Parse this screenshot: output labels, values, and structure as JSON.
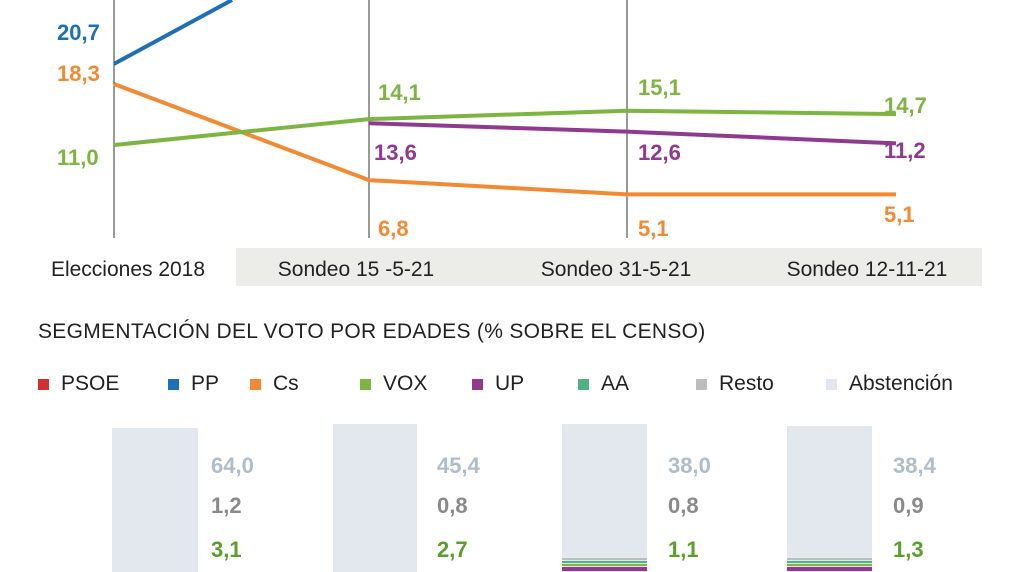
{
  "chart_data": [
    {
      "type": "line",
      "categories": [
        "Elecciones 2018",
        "Sondeo 15 -5-21",
        "Sondeo 31-5-21",
        "Sondeo 12-11-21"
      ],
      "series": [
        {
          "name": "PP",
          "color": "#1f6fb5",
          "values": [
            20.7,
            null,
            null,
            null
          ],
          "labels": [
            "20,7",
            "",
            "",
            ""
          ]
        },
        {
          "name": "Cs",
          "color": "#f28a34",
          "values": [
            18.3,
            6.8,
            5.1,
            5.1
          ],
          "labels": [
            "18,3",
            "6,8",
            "5,1",
            "5,1"
          ]
        },
        {
          "name": "VOX",
          "color": "#7db442",
          "values": [
            11.0,
            14.1,
            15.1,
            14.7
          ],
          "labels": [
            "11,0",
            "14,1",
            "15,1",
            "14,7"
          ]
        },
        {
          "name": "UP",
          "color": "#8f3a8f",
          "values": [
            null,
            13.6,
            12.6,
            11.2
          ],
          "labels": [
            "",
            "13,6",
            "12,6",
            "11,2"
          ]
        }
      ],
      "ylim": [
        2,
        22
      ],
      "grid": "vertical"
    },
    {
      "type": "bar",
      "title": "SEGMENTACIÓN DEL VOTO POR EDADES (% SOBRE EL CENSO)",
      "legend": [
        {
          "name": "PSOE",
          "color": "#d62f2f"
        },
        {
          "name": "PP",
          "color": "#1f6fb5"
        },
        {
          "name": "Cs",
          "color": "#f28a34"
        },
        {
          "name": "VOX",
          "color": "#7db442"
        },
        {
          "name": "UP",
          "color": "#8f3a8f"
        },
        {
          "name": "AA",
          "color": "#4db37f"
        },
        {
          "name": "Resto",
          "color": "#bdbdbd"
        },
        {
          "name": "Abstención",
          "color": "#e3e8ee"
        }
      ],
      "groups": [
        {
          "values": [
            {
              "name": "Abstención",
              "value": 64.0,
              "label": "64,0",
              "color": "#aebdcc"
            },
            {
              "name": "Resto",
              "value": 1.2,
              "label": "1,2",
              "color": "#8a8a8a"
            },
            {
              "name": "VOX",
              "value": 3.1,
              "label": "3,1",
              "color": "#5a9f2d"
            }
          ]
        },
        {
          "values": [
            {
              "name": "Abstención",
              "value": 45.4,
              "label": "45,4",
              "color": "#aebdcc"
            },
            {
              "name": "Resto",
              "value": 0.8,
              "label": "0,8",
              "color": "#8a8a8a"
            },
            {
              "name": "VOX",
              "value": 2.7,
              "label": "2,7",
              "color": "#5a9f2d"
            }
          ]
        },
        {
          "values": [
            {
              "name": "Abstención",
              "value": 38.0,
              "label": "38,0",
              "color": "#aebdcc"
            },
            {
              "name": "Resto",
              "value": 0.8,
              "label": "0,8",
              "color": "#8a8a8a"
            },
            {
              "name": "VOX",
              "value": 1.1,
              "label": "1,1",
              "color": "#5a9f2d"
            }
          ]
        },
        {
          "values": [
            {
              "name": "Abstención",
              "value": 38.4,
              "label": "38,4",
              "color": "#aebdcc"
            },
            {
              "name": "Resto",
              "value": 0.9,
              "label": "0,9",
              "color": "#8a8a8a"
            },
            {
              "name": "VOX",
              "value": 1.3,
              "label": "1,3",
              "color": "#5a9f2d"
            }
          ]
        }
      ]
    }
  ]
}
